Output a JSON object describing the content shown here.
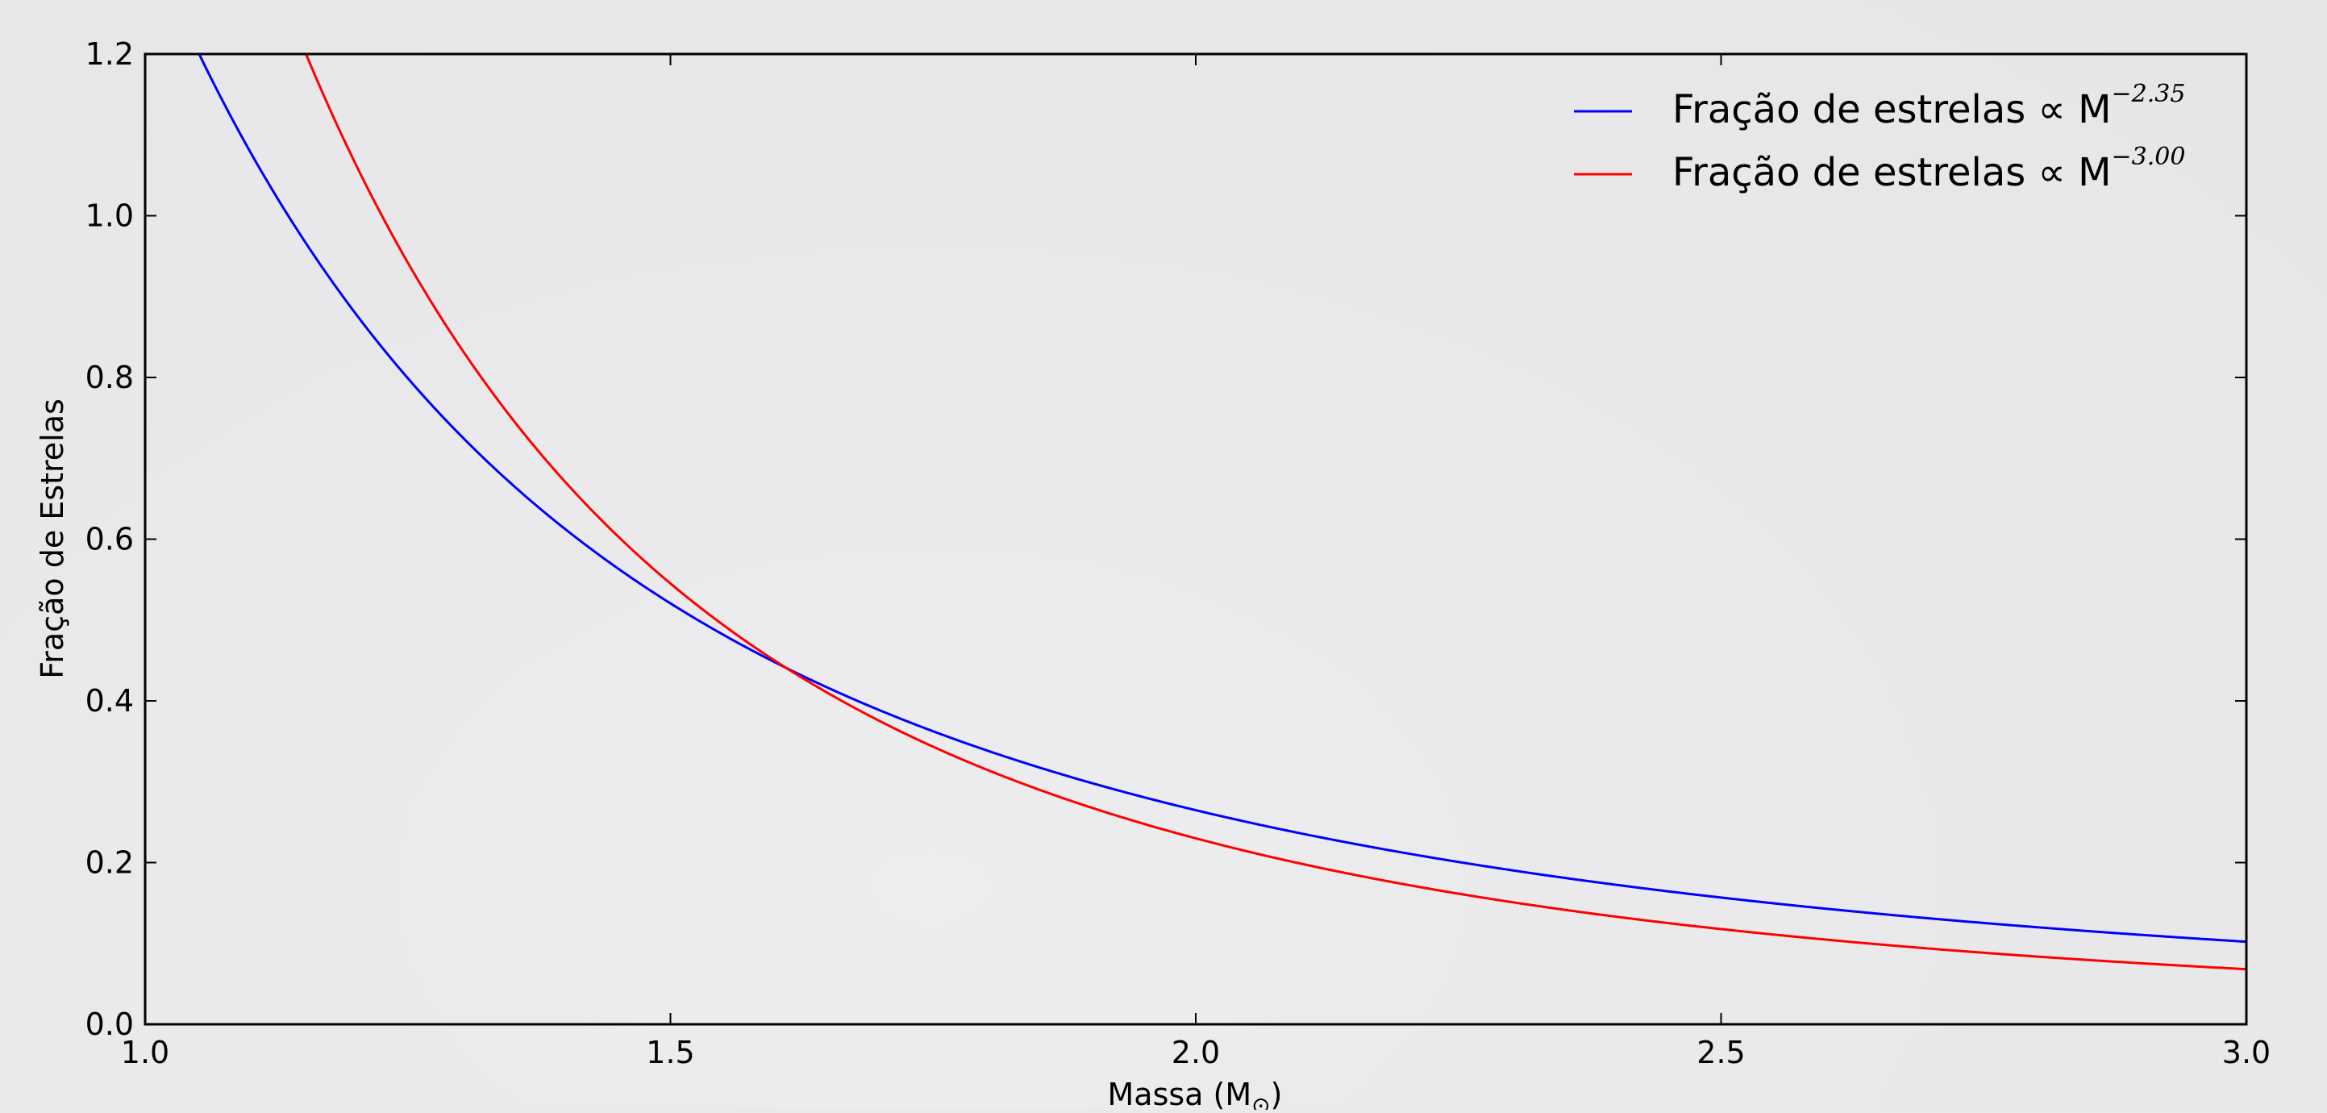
{
  "chart_data": {
    "type": "line",
    "xlabel": "Massa (M",
    "xlabel_subscript": "⊙",
    "xlabel_suffix": ")",
    "ylabel": "Fração de Estrelas",
    "xlim": [
      1.0,
      3.0
    ],
    "ylim": [
      0.0,
      1.2
    ],
    "xticks": [
      "1.0",
      "1.5",
      "2.0",
      "2.5",
      "3.0"
    ],
    "yticks": [
      "0.0",
      "0.2",
      "0.4",
      "0.6",
      "0.8",
      "1.0",
      "1.2"
    ],
    "xtick_values": [
      1.0,
      1.5,
      2.0,
      2.5,
      3.0
    ],
    "ytick_values": [
      0.0,
      0.2,
      0.4,
      0.6,
      0.8,
      1.0,
      1.2
    ],
    "grid": false,
    "legend_position": "top-right",
    "series": [
      {
        "name": "Fração de estrelas ∝ M",
        "exponent": "−2.35",
        "color": "#0000ff",
        "alpha": 2.35,
        "amplitude": 1.35
      },
      {
        "name": "Fração de estrelas ∝ M",
        "exponent": "−3.00",
        "color": "#ff0000",
        "alpha": 3.0,
        "amplitude": 1.84
      }
    ]
  }
}
